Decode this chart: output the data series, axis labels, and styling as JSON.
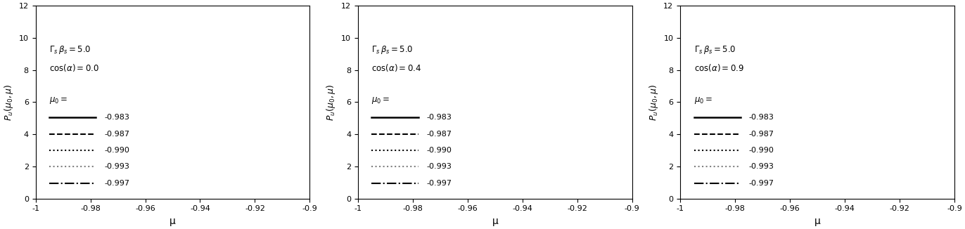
{
  "gamma_beta_s": 5.0,
  "cos_alpha_values": [
    0.0,
    0.4,
    0.9
  ],
  "mu0_values": [
    -0.983,
    -0.987,
    -0.99,
    -0.993,
    -0.997
  ],
  "mu0_labels": [
    "-0.983",
    "-0.987",
    "-0.990",
    "-0.993",
    "-0.997"
  ],
  "line_styles": [
    "-",
    "--",
    ":",
    ":",
    "-."
  ],
  "line_colors": [
    "black",
    "black",
    "black",
    "gray",
    "black"
  ],
  "line_widths": [
    1.8,
    1.5,
    1.5,
    1.5,
    1.5
  ],
  "xlim": [
    -1.0,
    -0.9
  ],
  "ylim": [
    0,
    12
  ],
  "xlabel": "μ",
  "xticks": [
    -1.0,
    -0.98,
    -0.96,
    -0.94,
    -0.92,
    -0.9
  ],
  "xtick_labels": [
    "-1",
    "-0.98",
    "-0.96",
    "-0.94",
    "-0.92",
    "-0.9"
  ],
  "yticks": [
    0,
    2,
    4,
    6,
    8,
    10,
    12
  ],
  "figsize": [
    13.72,
    3.26
  ],
  "dpi": 100
}
